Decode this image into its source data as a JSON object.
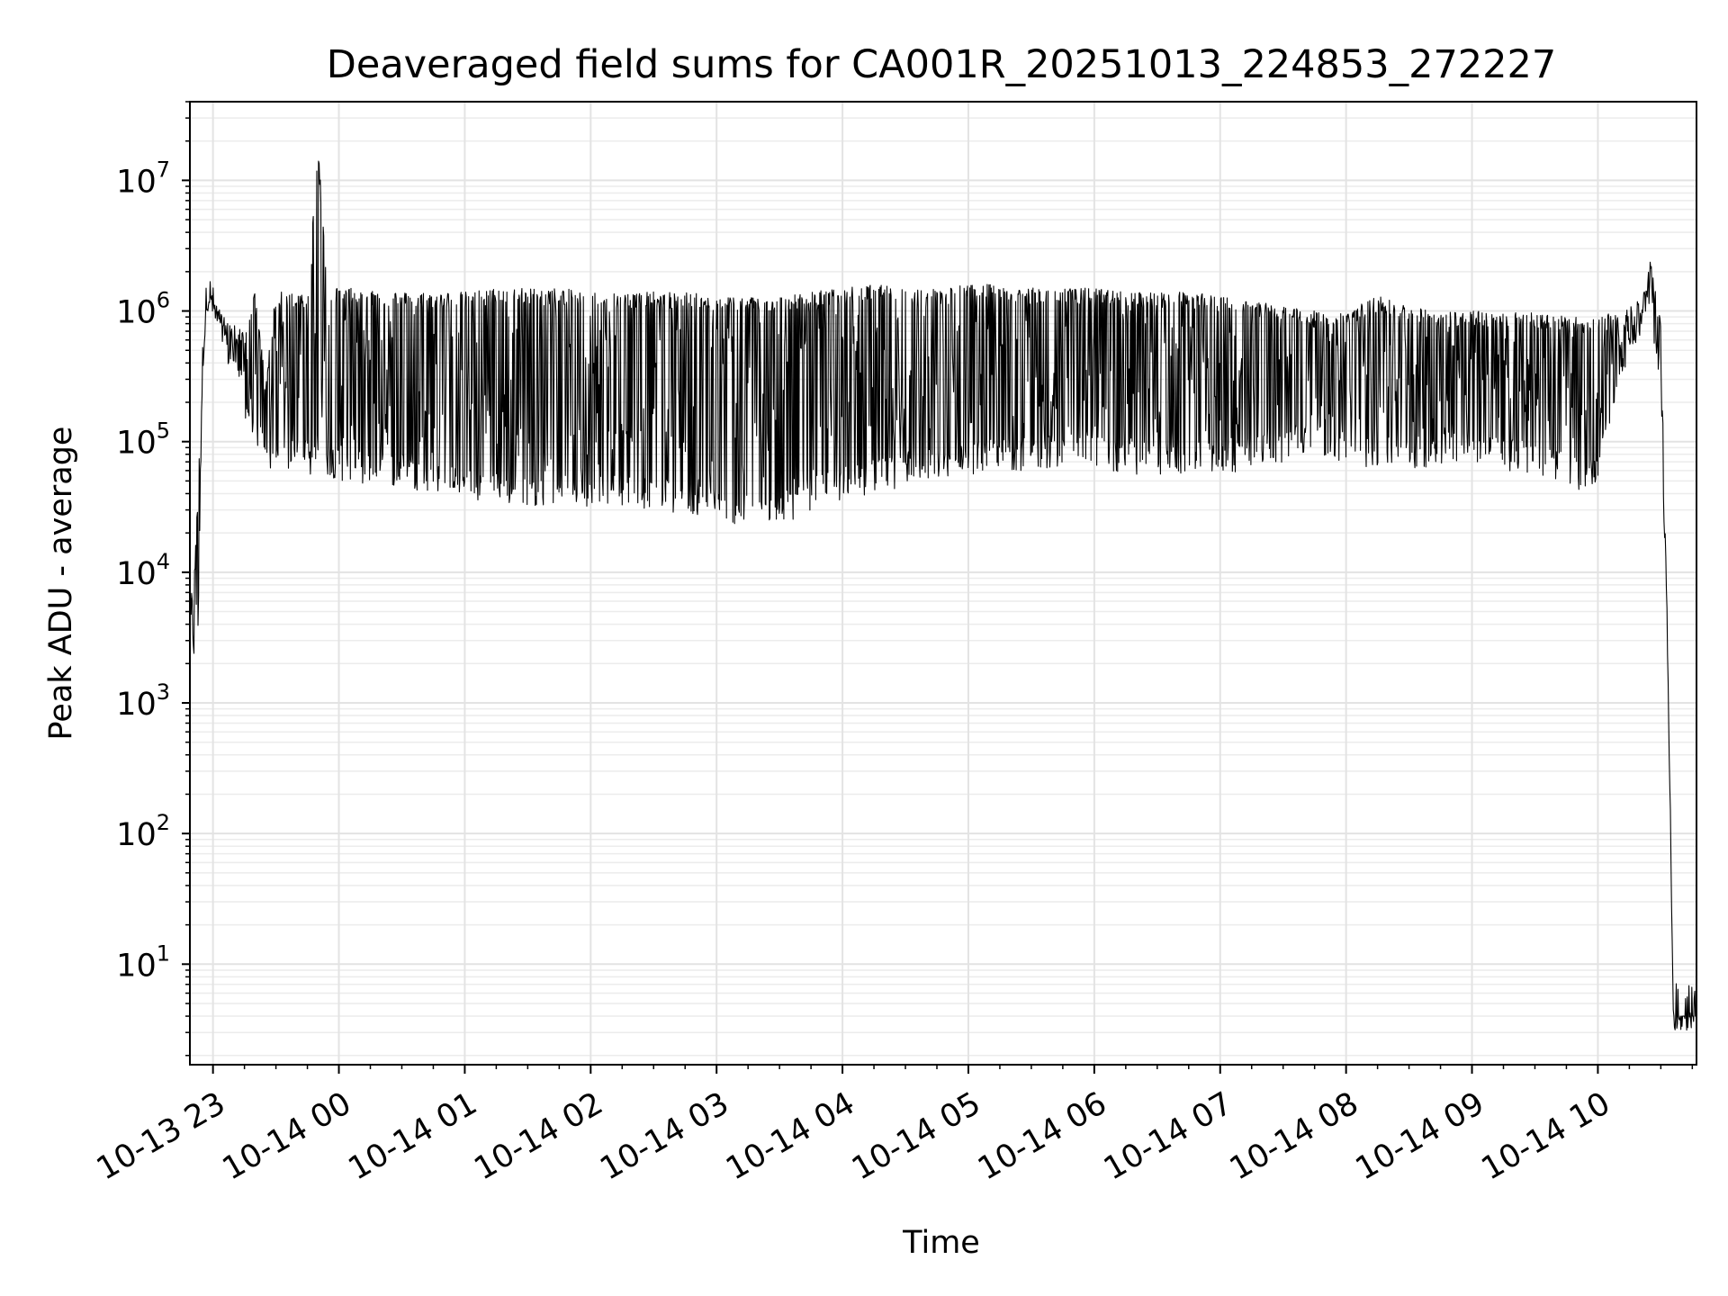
{
  "chart_data": {
    "type": "line",
    "title": "Deaveraged field sums for CA001R_20251013_224853_272227",
    "xlabel": "Time",
    "ylabel": "Peak ADU - average",
    "y_scale": "log",
    "ylim": [
      1.7,
      40000000
    ],
    "xlim": [
      "10-13 22:49",
      "10-14 10:47"
    ],
    "grid": "major and minor, light gray",
    "line_color": "#000000",
    "x_ticks": [
      "10-13 23",
      "10-14 00",
      "10-14 01",
      "10-14 02",
      "10-14 03",
      "10-14 04",
      "10-14 05",
      "10-14 06",
      "10-14 07",
      "10-14 08",
      "10-14 09",
      "10-14 10"
    ],
    "y_ticks": [
      {
        "base": "10",
        "exp": "1"
      },
      {
        "base": "10",
        "exp": "2"
      },
      {
        "base": "10",
        "exp": "3"
      },
      {
        "base": "10",
        "exp": "4"
      },
      {
        "base": "10",
        "exp": "5"
      },
      {
        "base": "10",
        "exp": "6"
      },
      {
        "base": "10",
        "exp": "7"
      }
    ],
    "series": [
      {
        "style": "black line, dense rapid fluctuations between envelope bounds",
        "x": [
          "10-13 22:49",
          "10-13 22:51",
          "10-13 22:53",
          "10-13 22:55",
          "10-13 22:57",
          "10-13 22:59",
          "10-13 23:05",
          "10-13 23:10",
          "10-13 23:15",
          "10-13 23:20",
          "10-13 23:25",
          "10-13 23:30",
          "10-13 23:35",
          "10-13 23:40",
          "10-13 23:45",
          "10-13 23:50",
          "10-13 23:55",
          "10-14 00:00",
          "10-14 00:15",
          "10-14 00:30",
          "10-14 00:45",
          "10-14 01:00",
          "10-14 01:15",
          "10-14 01:30",
          "10-14 01:45",
          "10-14 02:00",
          "10-14 02:15",
          "10-14 02:30",
          "10-14 02:45",
          "10-14 03:00",
          "10-14 03:15",
          "10-14 03:30",
          "10-14 03:45",
          "10-14 04:00",
          "10-14 04:15",
          "10-14 04:30",
          "10-14 04:45",
          "10-14 05:00",
          "10-14 05:15",
          "10-14 05:30",
          "10-14 05:45",
          "10-14 06:00",
          "10-14 06:15",
          "10-14 06:30",
          "10-14 06:45",
          "10-14 07:00",
          "10-14 07:15",
          "10-14 07:30",
          "10-14 07:45",
          "10-14 08:00",
          "10-14 08:15",
          "10-14 08:30",
          "10-14 08:45",
          "10-14 09:00",
          "10-14 09:15",
          "10-14 09:30",
          "10-14 09:45",
          "10-14 10:00",
          "10-14 10:10",
          "10-14 10:20",
          "10-14 10:25",
          "10-14 10:30",
          "10-14 10:33",
          "10-14 10:36",
          "10-14 10:40",
          "10-14 10:44",
          "10-14 10:47"
        ],
        "upper": [
          6000,
          9000,
          60000,
          400000,
          1300000,
          1400000,
          900000,
          800000,
          700000,
          1400000,
          300000,
          1400000,
          1400000,
          1400000,
          1400000,
          19000000,
          1400000,
          1500000,
          1500000,
          1400000,
          1400000,
          1400000,
          1500000,
          1500000,
          1500000,
          1400000,
          1400000,
          1400000,
          1400000,
          1300000,
          1300000,
          1300000,
          1400000,
          1500000,
          1600000,
          1500000,
          1500000,
          1600000,
          1600000,
          1500000,
          1500000,
          1500000,
          1400000,
          1400000,
          1400000,
          1300000,
          1200000,
          1100000,
          1000000,
          1000000,
          1300000,
          1100000,
          1000000,
          1000000,
          1000000,
          1000000,
          900000,
          900000,
          1000000,
          1300000,
          2400000,
          900000,
          5000,
          4,
          4,
          4,
          4
        ],
        "lower": [
          2500,
          2000,
          3000,
          300000,
          1000000,
          1000000,
          400000,
          300000,
          150000,
          100000,
          60000,
          55000,
          60000,
          60000,
          55000,
          55000,
          55000,
          50000,
          45000,
          45000,
          40000,
          35000,
          32000,
          32000,
          32000,
          32000,
          32000,
          30000,
          28000,
          25000,
          22000,
          22000,
          30000,
          35000,
          40000,
          45000,
          50000,
          55000,
          60000,
          60000,
          65000,
          65000,
          55000,
          55000,
          55000,
          55000,
          60000,
          70000,
          80000,
          65000,
          60000,
          60000,
          65000,
          70000,
          60000,
          55000,
          45000,
          40000,
          300000,
          600000,
          900000,
          200000,
          3000,
          4,
          4,
          4,
          4
        ]
      }
    ]
  }
}
